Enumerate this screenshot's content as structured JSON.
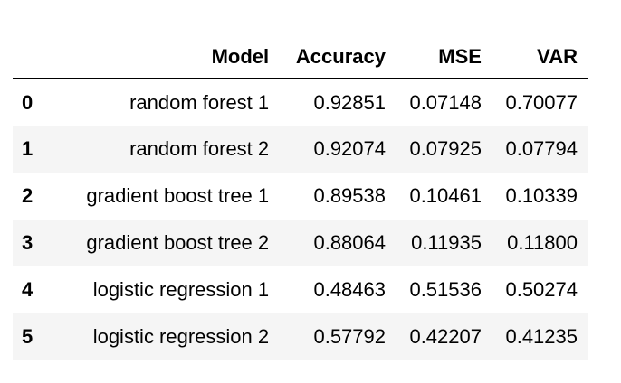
{
  "table": {
    "index_header": "",
    "columns": [
      "Model",
      "Accuracy",
      "MSE",
      "VAR"
    ],
    "rows": [
      {
        "index": "0",
        "model": "random forest 1",
        "accuracy": "0.92851",
        "mse": "0.07148",
        "var": "0.70077"
      },
      {
        "index": "1",
        "model": "random forest 2",
        "accuracy": "0.92074",
        "mse": "0.07925",
        "var": "0.07794"
      },
      {
        "index": "2",
        "model": "gradient boost tree 1",
        "accuracy": "0.89538",
        "mse": "0.10461",
        "var": "0.10339"
      },
      {
        "index": "3",
        "model": "gradient boost tree 2",
        "accuracy": "0.88064",
        "mse": "0.11935",
        "var": "0.11800"
      },
      {
        "index": "4",
        "model": "logistic regression 1",
        "accuracy": "0.48463",
        "mse": "0.51536",
        "var": "0.50274"
      },
      {
        "index": "5",
        "model": "logistic regression 2",
        "accuracy": "0.57792",
        "mse": "0.42207",
        "var": "0.41235"
      }
    ]
  }
}
